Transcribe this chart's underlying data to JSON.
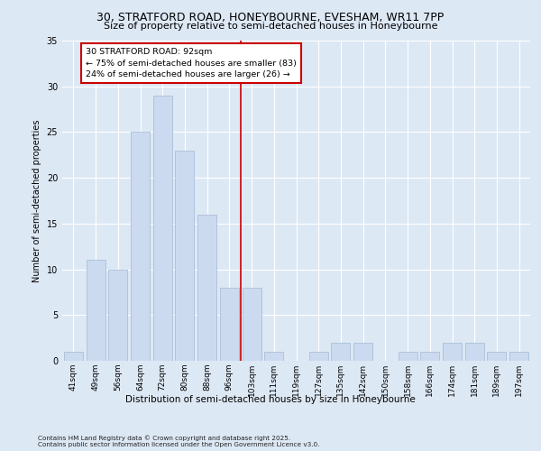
{
  "title1": "30, STRATFORD ROAD, HONEYBOURNE, EVESHAM, WR11 7PP",
  "title2": "Size of property relative to semi-detached houses in Honeybourne",
  "xlabel": "Distribution of semi-detached houses by size in Honeybourne",
  "ylabel": "Number of semi-detached properties",
  "categories": [
    "41sqm",
    "49sqm",
    "56sqm",
    "64sqm",
    "72sqm",
    "80sqm",
    "88sqm",
    "96sqm",
    "103sqm",
    "111sqm",
    "119sqm",
    "127sqm",
    "135sqm",
    "142sqm",
    "150sqm",
    "158sqm",
    "166sqm",
    "174sqm",
    "181sqm",
    "189sqm",
    "197sqm"
  ],
  "values": [
    1,
    11,
    10,
    25,
    29,
    23,
    16,
    8,
    8,
    1,
    0,
    1,
    2,
    2,
    0,
    1,
    1,
    2,
    2,
    1,
    1
  ],
  "bar_color": "#ccdaf0",
  "bar_edge_color": "#aabfd8",
  "vline_pos": 7.5,
  "vline_color": "#cc0000",
  "annotation_title": "30 STRATFORD ROAD: 92sqm",
  "annotation_line1": "← 75% of semi-detached houses are smaller (83)",
  "annotation_line2": "24% of semi-detached houses are larger (26) →",
  "ylim": [
    0,
    35
  ],
  "yticks": [
    0,
    5,
    10,
    15,
    20,
    25,
    30,
    35
  ],
  "footnote1": "Contains HM Land Registry data © Crown copyright and database right 2025.",
  "footnote2": "Contains public sector information licensed under the Open Government Licence v3.0.",
  "bg_color": "#dde8f5",
  "plot_bg_color": "#dde8f5"
}
